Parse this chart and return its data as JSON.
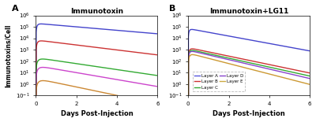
{
  "title_A": "Immunotoxin",
  "title_B": "Immunotoxin+LG11",
  "xlabel": "Days Post-Injection",
  "ylabel": "Immunotoxins/Cell",
  "panel_A_label": "A",
  "panel_B_label": "B",
  "layers": [
    "Layer A",
    "Layer B",
    "Layer C",
    "Layer D",
    "Layer E"
  ],
  "colors_A": [
    "#4444cc",
    "#cc3333",
    "#33aa33",
    "#cc44cc",
    "#cc8833"
  ],
  "colors_B": [
    "#4444cc",
    "#cc3333",
    "#33aa33",
    "#8844cc",
    "#cc9933"
  ],
  "legend_colors": [
    "#5555dd",
    "#cc3333",
    "#33aa33",
    "#8844cc",
    "#ccaa44"
  ],
  "background": "#ffffff"
}
